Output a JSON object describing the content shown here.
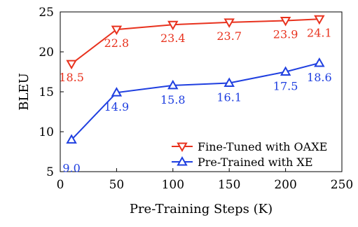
{
  "chart_data": {
    "type": "line",
    "title": "",
    "xlabel": "Pre-Training Steps (K)",
    "ylabel": "BLEU",
    "xlim": [
      0,
      250
    ],
    "ylim": [
      5,
      25
    ],
    "xticks": [
      0,
      50,
      100,
      150,
      200,
      250
    ],
    "yticks": [
      5,
      10,
      15,
      20,
      25
    ],
    "grid": false,
    "legend_position": "bottom-right",
    "series": [
      {
        "name": "Fine-Tuned with OAXE",
        "color": "#e8321e",
        "marker": "triangle-down",
        "x": [
          10,
          50,
          100,
          150,
          200,
          230
        ],
        "y": [
          18.5,
          22.8,
          23.4,
          23.7,
          23.9,
          24.1
        ],
        "labels": [
          "18.5",
          "22.8",
          "23.4",
          "23.7",
          "23.9",
          "24.1"
        ]
      },
      {
        "name": "Pre-Trained with XE",
        "color": "#1f3fe0",
        "marker": "triangle-up",
        "x": [
          10,
          50,
          100,
          150,
          200,
          230
        ],
        "y": [
          9.0,
          14.9,
          15.8,
          16.1,
          17.5,
          18.6
        ],
        "labels": [
          "9.0",
          "14.9",
          "15.8",
          "16.1",
          "17.5",
          "18.6"
        ]
      }
    ]
  }
}
